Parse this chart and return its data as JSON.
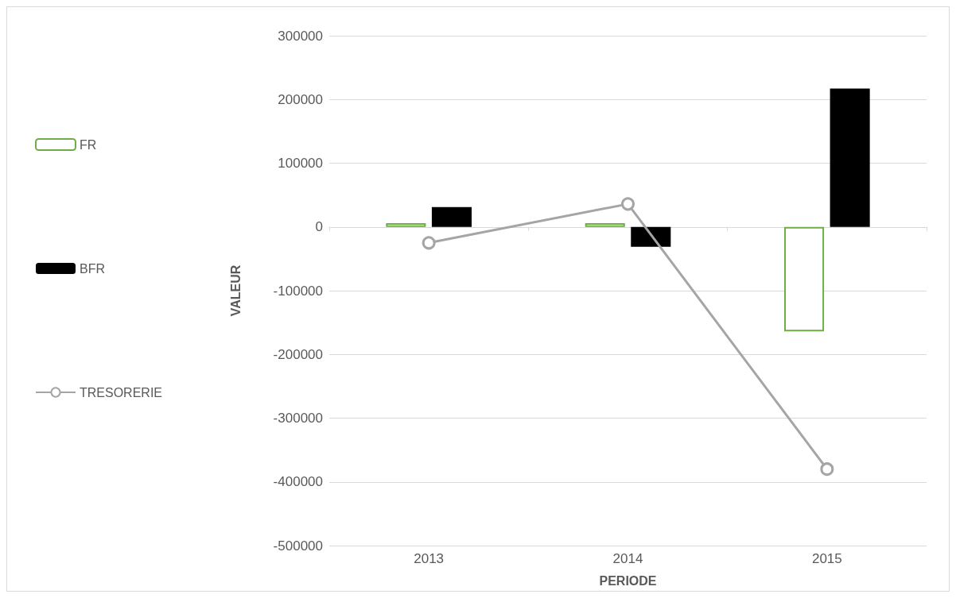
{
  "chart_data": {
    "type": "bar",
    "xlabel": "PERIODE",
    "ylabel": "VALEUR",
    "categories": [
      "2013",
      "2014",
      "2015"
    ],
    "series": [
      {
        "name": "FR",
        "color": "#70ad47",
        "values": [
          6000,
          6000,
          -164000
        ]
      },
      {
        "name": "BFR",
        "color": "#000000",
        "values": [
          31000,
          -31000,
          217000
        ]
      },
      {
        "name": "TRESORERIE",
        "type": "line",
        "color": "#a5a5a5",
        "values": [
          -25000,
          36000,
          -380000
        ]
      }
    ],
    "ylim": [
      -500000,
      300000
    ],
    "yticks": [
      -500000,
      -400000,
      -300000,
      -200000,
      -100000,
      0,
      100000,
      200000,
      300000
    ],
    "grid": "y",
    "legend": "left",
    "marker": "circle"
  }
}
